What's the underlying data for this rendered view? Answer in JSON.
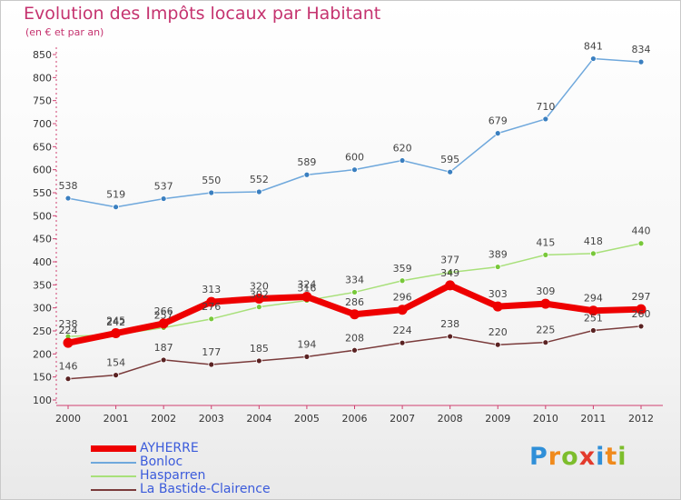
{
  "header": {
    "title": "Evolution des Impôts locaux par Habitant",
    "subtitle": "(en € et par an)"
  },
  "logo": {
    "text": "Proxiti",
    "letters": [
      {
        "char": "P",
        "color": "#2f8fd8"
      },
      {
        "char": "r",
        "color": "#f08a1c"
      },
      {
        "char": "o",
        "color": "#7dbd2c"
      },
      {
        "char": "x",
        "color": "#e33a2c"
      },
      {
        "char": "i",
        "color": "#2f8fd8"
      },
      {
        "char": "t",
        "color": "#f08a1c"
      },
      {
        "char": "i",
        "color": "#7dbd2c"
      }
    ]
  },
  "chart_data": {
    "type": "line",
    "title": "Evolution des Impôts locaux par Habitant",
    "subtitle": "(en € et par an)",
    "x": [
      "2000",
      "2001",
      "2002",
      "2003",
      "2004",
      "2005",
      "2006",
      "2007",
      "2008",
      "2009",
      "2010",
      "2011",
      "2012"
    ],
    "ylim": [
      100,
      850
    ],
    "yticks": [
      100,
      150,
      200,
      250,
      300,
      350,
      400,
      450,
      500,
      550,
      600,
      650,
      700,
      750,
      800,
      850
    ],
    "grid": false,
    "legend_position": "bottom-left",
    "series": [
      {
        "name": "Bonloc",
        "color": "#6fa8dc",
        "marker_color": "#3a7fc0",
        "values": [
          538,
          519,
          537,
          550,
          552,
          589,
          600,
          620,
          595,
          679,
          710,
          841,
          834
        ],
        "labels": [
          "538",
          "519",
          "537",
          "550",
          "552",
          "589",
          "600",
          "620",
          "595",
          "679",
          "710",
          "841",
          "834"
        ]
      },
      {
        "name": "Hasparren",
        "color": "#a8e07a",
        "marker_color": "#78c83a",
        "values": [
          238,
          242,
          257,
          276,
          302,
          316,
          334,
          359,
          377,
          389,
          415,
          418,
          440
        ],
        "labels": [
          "238",
          "242",
          "257",
          "276",
          "302",
          "316",
          "334",
          "359",
          "377",
          "389",
          "415",
          "418",
          "440"
        ]
      },
      {
        "name": "La Bastide-Clairence",
        "color": "#7a3b3b",
        "marker_color": "#5a2222",
        "values": [
          146,
          154,
          187,
          177,
          185,
          194,
          208,
          224,
          238,
          220,
          225,
          251,
          260
        ],
        "labels": [
          "146",
          "154",
          "187",
          "177",
          "185",
          "194",
          "208",
          "224",
          "238",
          "220",
          "225",
          "251",
          "260"
        ]
      },
      {
        "name": "AYHERRE",
        "color": "#ee0000",
        "marker_color": "#ee0000",
        "thick": true,
        "values": [
          224,
          245,
          266,
          313,
          320,
          324,
          286,
          296,
          349,
          303,
          309,
          294,
          297
        ],
        "labels": [
          "224",
          "245",
          "266",
          "313",
          "320",
          "324",
          "286",
          "296",
          "349",
          "303",
          "309",
          "294",
          "297"
        ]
      }
    ]
  },
  "legend": {
    "items": [
      {
        "label": "AYHERRE",
        "color": "#ee0000",
        "thick": true
      },
      {
        "label": "Bonloc",
        "color": "#6fa8dc",
        "thick": false
      },
      {
        "label": "Hasparren",
        "color": "#a8e07a",
        "thick": false
      },
      {
        "label": "La Bastide-Clairence",
        "color": "#7a3b3b",
        "thick": false
      }
    ]
  }
}
